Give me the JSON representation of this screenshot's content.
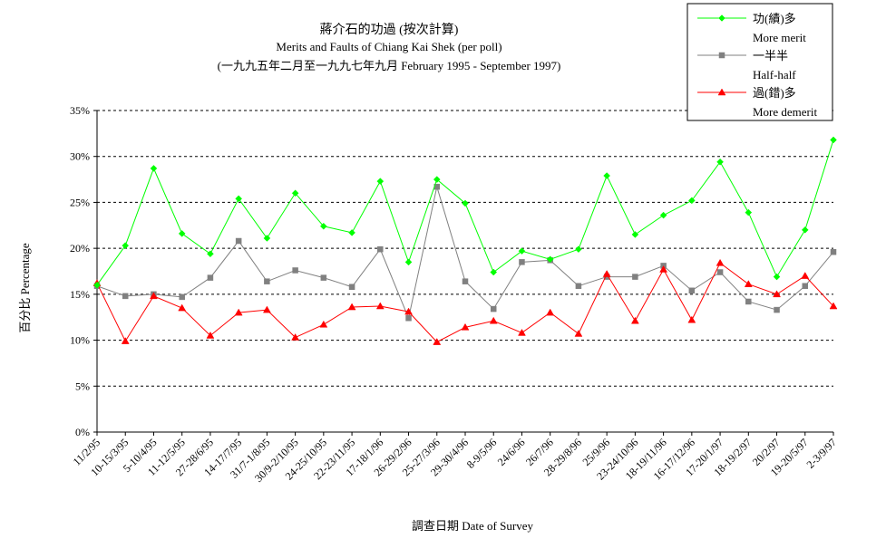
{
  "chart_data": {
    "type": "line",
    "title": "蔣介石的功過 (按次計算)",
    "subtitle": "Merits and Faults of Chiang Kai Shek (per poll)",
    "subtitle2": "(一九九五年二月至一九九七年九月 February 1995 - September 1997)",
    "xlabel": "調查日期 Date of Survey",
    "ylabel": "百分比 Percentage",
    "ylim": [
      0,
      35
    ],
    "yticks": [
      "0%",
      "5%",
      "10%",
      "15%",
      "20%",
      "25%",
      "30%",
      "35%"
    ],
    "grid": true,
    "legend_position": "top-right",
    "categories": [
      "11/2/95",
      "10-15/3/95",
      "5-10/4/95",
      "11-12/5/95",
      "27-28/6/95",
      "14-17/7/95",
      "31/7-1/8/95",
      "30/9-2/10/95",
      "24-25/10/95",
      "22-23/11/95",
      "17-18/1/96",
      "26-29/2/96",
      "25-27/3/96",
      "29-30/4/96",
      "8-9/5/96",
      "24/6/96",
      "26/7/96",
      "28-29/8/96",
      "25/9/96",
      "23-24/10/96",
      "18-19/11/96",
      "16-17/12/96",
      "17-20/1/97",
      "18-19/2/97",
      "20/2/97",
      "19-20/5/97",
      "2-3/9/97"
    ],
    "series": [
      {
        "name": "功(績)多",
        "name_en": "More merit",
        "color": "#00ff00",
        "marker": "diamond",
        "values": [
          16.0,
          20.3,
          28.7,
          21.6,
          19.4,
          25.4,
          21.1,
          26.0,
          22.4,
          21.7,
          27.3,
          18.5,
          27.5,
          24.9,
          17.4,
          19.7,
          18.8,
          19.9,
          27.9,
          21.5,
          23.6,
          25.2,
          29.4,
          23.9,
          16.9,
          22.0,
          31.8
        ]
      },
      {
        "name": "一半半",
        "name_en": "Half-half",
        "color": "#808080",
        "marker": "square",
        "values": [
          15.9,
          14.8,
          15.0,
          14.7,
          16.8,
          20.8,
          16.4,
          17.6,
          16.8,
          15.8,
          19.9,
          12.4,
          26.7,
          16.4,
          13.4,
          18.5,
          18.7,
          15.9,
          16.9,
          16.9,
          18.1,
          15.4,
          17.4,
          14.2,
          13.3,
          15.9,
          19.6
        ]
      },
      {
        "name": "過(錯)多",
        "name_en": "More demerit",
        "color": "#ff0000",
        "marker": "triangle",
        "values": [
          16.2,
          9.9,
          14.8,
          13.5,
          10.5,
          13.0,
          13.3,
          10.3,
          11.7,
          13.6,
          13.7,
          13.1,
          9.8,
          11.4,
          12.1,
          10.8,
          13.0,
          10.7,
          17.2,
          12.1,
          17.7,
          12.2,
          18.4,
          16.1,
          15.0,
          17.0,
          13.7
        ]
      }
    ]
  }
}
